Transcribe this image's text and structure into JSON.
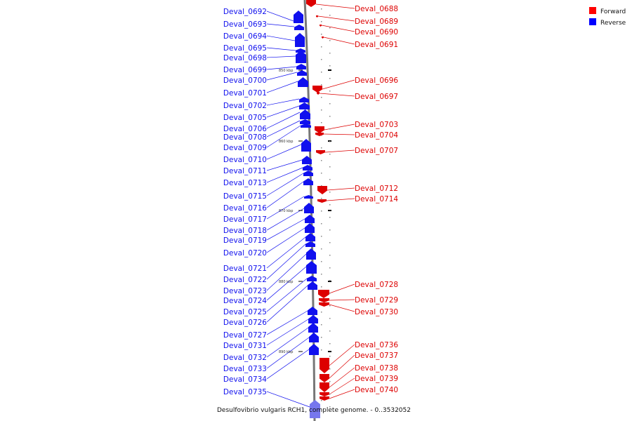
{
  "caption": "Desulfovibrio vulgaris RCH1, complete genome. - 0..3532052",
  "legend": {
    "items": [
      {
        "label": "Forward",
        "color": "#ff0000"
      },
      {
        "label": "Reverse",
        "color": "#0000ff"
      }
    ]
  },
  "colors": {
    "forward": "#dd0000",
    "reverse": "#1010ee",
    "axis": "#777777"
  },
  "ticks": [
    "850 kbp",
    "860 kbp",
    "870 kbp",
    "880 kbp",
    "890 kbp"
  ],
  "reverse_genes": [
    "Deval_0692",
    "Deval_0693",
    "Deval_0694",
    "Deval_0695",
    "Deval_0698",
    "Deval_0699",
    "Deval_0700",
    "Deval_0701",
    "Deval_0702",
    "Deval_0705",
    "Deval_0706",
    "Deval_0708",
    "Deval_0709",
    "Deval_0710",
    "Deval_0711",
    "Deval_0713",
    "Deval_0715",
    "Deval_0716",
    "Deval_0717",
    "Deval_0718",
    "Deval_0719",
    "Deval_0720",
    "Deval_0721",
    "Deval_0722",
    "Deval_0723",
    "Deval_0724",
    "Deval_0725",
    "Deval_0726",
    "Deval_0727",
    "Deval_0731",
    "Deval_0732",
    "Deval_0733",
    "Deval_0734",
    "Deval_0735"
  ],
  "forward_genes": [
    "Deval_0688",
    "Deval_0689",
    "Deval_0690",
    "Deval_0691",
    "Deval_0696",
    "Deval_0697",
    "Deval_0703",
    "Deval_0704",
    "Deval_0707",
    "Deval_0712",
    "Deval_0714",
    "Deval_0728",
    "Deval_0729",
    "Deval_0730",
    "Deval_0736",
    "Deval_0737",
    "Deval_0738",
    "Deval_0739",
    "Deval_0740"
  ]
}
